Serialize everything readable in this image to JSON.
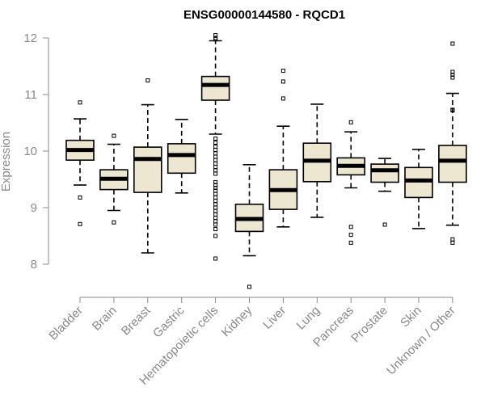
{
  "chart_data": {
    "type": "boxplot",
    "title": "ENSG00000144580 - RQCD1",
    "xlabel": "",
    "ylabel": "Expression",
    "ylim": [
      7.5,
      12.1
    ],
    "yticks": [
      8,
      9,
      10,
      11,
      12
    ],
    "box_fill": "#ede6d0",
    "categories": [
      "Bladder",
      "Brain",
      "Breast",
      "Gastric",
      "Hematopoietic cells",
      "Kidney",
      "Liver",
      "Lung",
      "Pancreas",
      "Prostate",
      "Skin",
      "Unknown / Other"
    ],
    "boxes": [
      {
        "name": "Bladder",
        "whisker_low": 9.4,
        "q1": 9.84,
        "median": 10.02,
        "q3": 10.19,
        "whisker_high": 10.57,
        "outliers": [
          10.86,
          9.18,
          8.71
        ]
      },
      {
        "name": "Brain",
        "whisker_low": 8.95,
        "q1": 9.32,
        "median": 9.51,
        "q3": 9.67,
        "whisker_high": 10.12,
        "outliers": [
          10.27,
          8.74
        ]
      },
      {
        "name": "Breast",
        "whisker_low": 8.2,
        "q1": 9.27,
        "median": 9.86,
        "q3": 10.07,
        "whisker_high": 10.82,
        "outliers": [
          11.25
        ]
      },
      {
        "name": "Gastric",
        "whisker_low": 9.26,
        "q1": 9.61,
        "median": 9.93,
        "q3": 10.13,
        "whisker_high": 10.56,
        "outliers": []
      },
      {
        "name": "Hematopoietic cells",
        "whisker_low": 10.3,
        "q1": 10.9,
        "median": 11.17,
        "q3": 11.32,
        "whisker_high": 11.95,
        "outliers": [
          12.05,
          12.0,
          11.98,
          10.22,
          10.15,
          10.08,
          10.02,
          9.96,
          9.9,
          9.84,
          9.78,
          9.72,
          9.66,
          9.6,
          9.45,
          9.4,
          9.35,
          9.3,
          9.24,
          9.18,
          9.12,
          9.06,
          9.0,
          8.94,
          8.88,
          8.82,
          8.76,
          8.7,
          8.62,
          8.5,
          8.1
        ]
      },
      {
        "name": "Kidney",
        "whisker_low": 8.15,
        "q1": 8.58,
        "median": 8.8,
        "q3": 9.06,
        "whisker_high": 9.76,
        "outliers": [
          7.6
        ]
      },
      {
        "name": "Liver",
        "whisker_low": 8.66,
        "q1": 8.97,
        "median": 9.31,
        "q3": 9.67,
        "whisker_high": 10.44,
        "outliers": [
          11.42,
          11.23,
          10.93
        ]
      },
      {
        "name": "Lung",
        "whisker_low": 8.83,
        "q1": 9.46,
        "median": 9.83,
        "q3": 10.14,
        "whisker_high": 10.83,
        "outliers": []
      },
      {
        "name": "Pancreas",
        "whisker_low": 9.35,
        "q1": 9.58,
        "median": 9.74,
        "q3": 9.88,
        "whisker_high": 10.34,
        "outliers": [
          10.51,
          8.66,
          8.52,
          8.38
        ]
      },
      {
        "name": "Prostate",
        "whisker_low": 9.29,
        "q1": 9.45,
        "median": 9.66,
        "q3": 9.77,
        "whisker_high": 9.87,
        "outliers": [
          8.7
        ]
      },
      {
        "name": "Skin",
        "whisker_low": 8.63,
        "q1": 9.18,
        "median": 9.48,
        "q3": 9.71,
        "whisker_high": 10.03,
        "outliers": []
      },
      {
        "name": "Unknown / Other",
        "whisker_low": 8.69,
        "q1": 9.45,
        "median": 9.83,
        "q3": 10.1,
        "whisker_high": 11.02,
        "outliers": [
          11.9,
          11.4,
          11.35,
          11.3,
          10.73,
          10.72,
          8.44,
          8.38
        ]
      }
    ]
  }
}
